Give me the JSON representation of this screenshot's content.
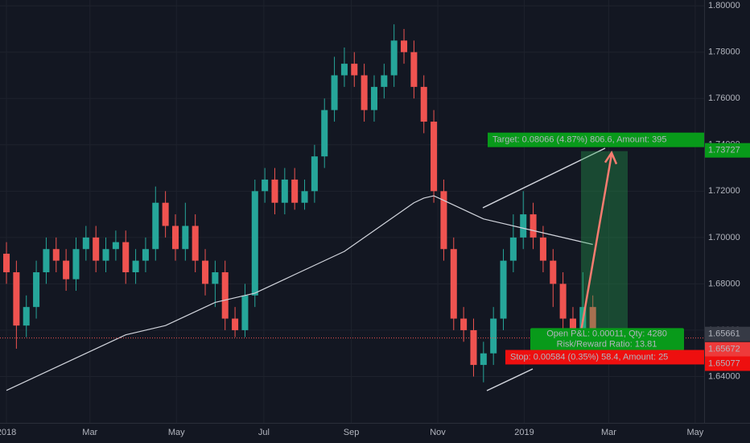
{
  "chart_data": {
    "type": "candlestick",
    "categories": [
      null,
      null,
      null,
      null,
      null,
      null,
      null,
      null,
      null,
      null,
      null,
      null,
      null,
      null,
      null,
      null,
      null,
      null,
      null,
      null,
      null,
      null,
      null,
      null,
      null,
      null,
      null,
      null,
      null,
      null,
      null,
      null,
      null,
      null,
      null,
      null,
      null,
      null,
      null,
      null,
      null,
      null,
      null,
      null,
      null,
      null,
      null,
      null,
      null,
      null,
      null,
      null,
      null,
      null,
      null,
      null,
      null,
      null,
      null,
      null
    ],
    "open": [
      1.693,
      1.685,
      1.662,
      1.67,
      1.685,
      1.695,
      1.69,
      1.682,
      1.695,
      1.7,
      1.69,
      1.695,
      1.698,
      1.685,
      1.69,
      1.695,
      1.715,
      1.705,
      1.695,
      1.705,
      1.69,
      1.68,
      1.685,
      1.665,
      1.66,
      1.675,
      1.72,
      1.725,
      1.715,
      1.725,
      1.715,
      1.72,
      1.735,
      1.755,
      1.77,
      1.775,
      1.77,
      1.755,
      1.765,
      1.77,
      1.785,
      1.78,
      1.765,
      1.75,
      1.72,
      1.695,
      1.665,
      1.66,
      1.645,
      1.65,
      1.665,
      1.69,
      1.7,
      1.71,
      1.7,
      1.69,
      1.68,
      1.665,
      1.66,
      1.67
    ],
    "high": [
      1.698,
      1.69,
      1.675,
      1.69,
      1.7,
      1.7,
      1.695,
      1.7,
      1.705,
      1.705,
      1.7,
      1.703,
      1.703,
      1.695,
      1.7,
      1.722,
      1.72,
      1.71,
      1.715,
      1.71,
      1.695,
      1.69,
      1.69,
      1.67,
      1.68,
      1.725,
      1.73,
      1.73,
      1.73,
      1.73,
      1.725,
      1.74,
      1.76,
      1.778,
      1.782,
      1.78,
      1.775,
      1.77,
      1.775,
      1.792,
      1.79,
      1.785,
      1.77,
      1.755,
      1.725,
      1.7,
      1.67,
      1.665,
      1.655,
      1.67,
      1.695,
      1.71,
      1.72,
      1.715,
      1.705,
      1.695,
      1.685,
      1.67,
      1.685,
      1.675
    ],
    "low": [
      1.68,
      1.652,
      1.657,
      1.665,
      1.68,
      1.685,
      1.677,
      1.677,
      1.69,
      1.685,
      1.685,
      1.69,
      1.68,
      1.68,
      1.685,
      1.69,
      1.7,
      1.69,
      1.69,
      1.685,
      1.675,
      1.67,
      1.66,
      1.657,
      1.657,
      1.67,
      1.715,
      1.71,
      1.71,
      1.712,
      1.712,
      1.715,
      1.73,
      1.75,
      1.765,
      1.765,
      1.75,
      1.75,
      1.76,
      1.765,
      1.775,
      1.76,
      1.745,
      1.715,
      1.69,
      1.66,
      1.655,
      1.64,
      1.6375,
      1.645,
      1.66,
      1.685,
      1.695,
      1.695,
      1.685,
      1.67,
      1.66,
      1.655,
      1.655,
      1.654
    ],
    "close": [
      1.685,
      1.662,
      1.67,
      1.685,
      1.695,
      1.69,
      1.682,
      1.695,
      1.7,
      1.69,
      1.695,
      1.698,
      1.685,
      1.69,
      1.695,
      1.715,
      1.705,
      1.695,
      1.705,
      1.69,
      1.68,
      1.685,
      1.665,
      1.66,
      1.675,
      1.72,
      1.725,
      1.715,
      1.725,
      1.715,
      1.72,
      1.735,
      1.755,
      1.77,
      1.775,
      1.77,
      1.755,
      1.765,
      1.77,
      1.785,
      1.78,
      1.765,
      1.75,
      1.72,
      1.695,
      1.665,
      1.66,
      1.645,
      1.65,
      1.665,
      1.69,
      1.7,
      1.71,
      1.7,
      1.69,
      1.68,
      1.665,
      1.66,
      1.67,
      1.655
    ],
    "up_color": "#26a69a",
    "down_color": "#ef5350",
    "moving_average": {
      "color": "#d1d4dc",
      "values": [
        1.634,
        1.636,
        1.638,
        1.64,
        1.642,
        1.644,
        1.646,
        1.648,
        1.65,
        1.652,
        1.654,
        1.656,
        1.658,
        1.659,
        1.66,
        1.661,
        1.662,
        1.664,
        1.666,
        1.668,
        1.67,
        1.672,
        1.673,
        1.674,
        1.675,
        1.676,
        1.678,
        1.68,
        1.682,
        1.684,
        1.686,
        1.688,
        1.69,
        1.692,
        1.694,
        1.697,
        1.7,
        1.703,
        1.706,
        1.709,
        1.712,
        1.715,
        1.717,
        1.718,
        1.716,
        1.714,
        1.712,
        1.71,
        1.708,
        1.707,
        1.706,
        1.705,
        1.704,
        1.703,
        1.702,
        1.701,
        1.7,
        1.699,
        1.698,
        1.697
      ]
    },
    "xlim": [
      -0.65,
      70.2
    ],
    "xticks": [
      {
        "value": 0,
        "label": "2018"
      },
      {
        "value": 8.4,
        "label": "Mar"
      },
      {
        "value": 17.1,
        "label": "May"
      },
      {
        "value": 25.9,
        "label": "Jul"
      },
      {
        "value": 34.7,
        "label": "Sep"
      },
      {
        "value": 43.4,
        "label": "Nov"
      },
      {
        "value": 52.1,
        "label": "2019"
      },
      {
        "value": 60.6,
        "label": "Mar"
      },
      {
        "value": 69.3,
        "label": "May"
      }
    ],
    "ylim": [
      1.62,
      1.8025
    ],
    "yticks": [
      {
        "value": 1.64,
        "label": "1.64000"
      },
      {
        "value": 1.66,
        "label": "1.66000"
      },
      {
        "value": 1.68,
        "label": "1.68000"
      },
      {
        "value": 1.7,
        "label": "1.70000"
      },
      {
        "value": 1.72,
        "label": "1.72000"
      },
      {
        "value": 1.74,
        "label": "1.74000"
      },
      {
        "value": 1.76,
        "label": "1.76000"
      },
      {
        "value": 1.78,
        "label": "1.78000"
      },
      {
        "value": 1.8,
        "label": "1.80000"
      }
    ],
    "last_price": 1.65661,
    "position": {
      "target": 1.73727,
      "entry": 1.65672,
      "stop": 1.65077,
      "target_label": "Target: 0.08066 (4.87%) 806.6, Amount: 395",
      "pnl_label": "Open P&L: 0.00011, Qty: 4280",
      "rr_label": "Risk/Reward Ratio: 13.81",
      "stop_label": "Stop: 0.00584 (0.35%) 58.4, Amount: 25"
    }
  }
}
